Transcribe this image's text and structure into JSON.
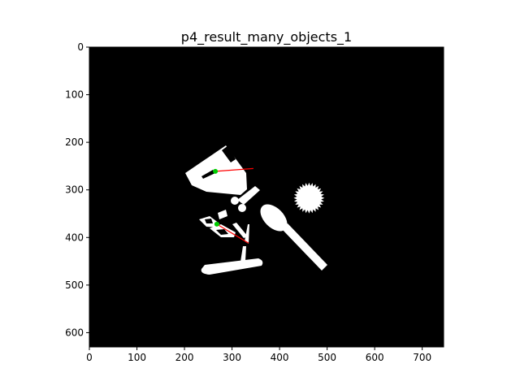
{
  "figure": {
    "title": "p4_result_many_objects_1"
  },
  "colors": {
    "background": "#ffffff",
    "image_background": "#000000",
    "object": "#ffffff",
    "centroid": "#00cc00",
    "orientation_line": "#ff0000",
    "axis": "#000000"
  },
  "axes": {
    "x_ticks": [
      "0",
      "100",
      "200",
      "300",
      "400",
      "500",
      "600",
      "700"
    ],
    "y_ticks": [
      "0",
      "100",
      "200",
      "300",
      "400",
      "500",
      "600"
    ],
    "x_range": [
      0,
      745
    ],
    "y_range": [
      0,
      630
    ]
  },
  "objects": [
    {
      "name": "rounded-block",
      "centroid": [
        265,
        261
      ],
      "line_end": [
        345,
        255
      ]
    },
    {
      "name": "scissors",
      "centroid": [
        268,
        372
      ],
      "line_end": [
        335,
        412
      ]
    },
    {
      "name": "spoon"
    },
    {
      "name": "gear"
    },
    {
      "name": "key"
    },
    {
      "name": "pencil"
    },
    {
      "name": "spike"
    }
  ]
}
